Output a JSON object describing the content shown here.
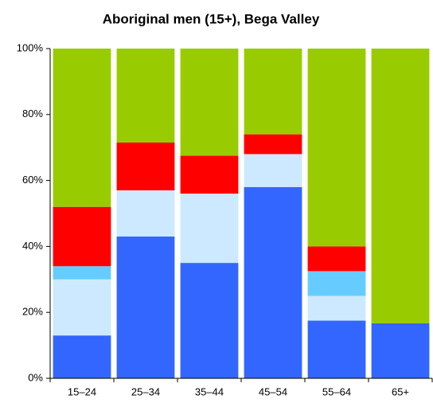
{
  "chart_data": {
    "type": "stacked_bar",
    "title": "Aboriginal men (15+), Bega Valley",
    "categories": [
      "15–24",
      "25–34",
      "35–44",
      "45–54",
      "55–64",
      "65+"
    ],
    "series": [
      {
        "color": "#3366ff",
        "values": [
          13,
          43,
          35,
          58,
          17.5,
          16.7
        ]
      },
      {
        "color": "#cce9ff",
        "values": [
          17,
          14,
          21,
          10,
          7.5,
          0
        ]
      },
      {
        "color": "#66ccff",
        "values": [
          4,
          0,
          0,
          0,
          7.5,
          0
        ]
      },
      {
        "color": "#ff0000",
        "values": [
          18,
          14.5,
          11.5,
          6,
          7.5,
          0
        ]
      },
      {
        "color": "#99cc00",
        "values": [
          48,
          28.5,
          32.5,
          26,
          60,
          83.3
        ]
      }
    ],
    "ylim": [
      0,
      100
    ],
    "yticks": [
      {
        "value": 0,
        "label": "0%"
      },
      {
        "value": 20,
        "label": "20%"
      },
      {
        "value": 40,
        "label": "40%"
      },
      {
        "value": 60,
        "label": "60%"
      },
      {
        "value": 80,
        "label": "80%"
      },
      {
        "value": 100,
        "label": "100%"
      }
    ]
  }
}
